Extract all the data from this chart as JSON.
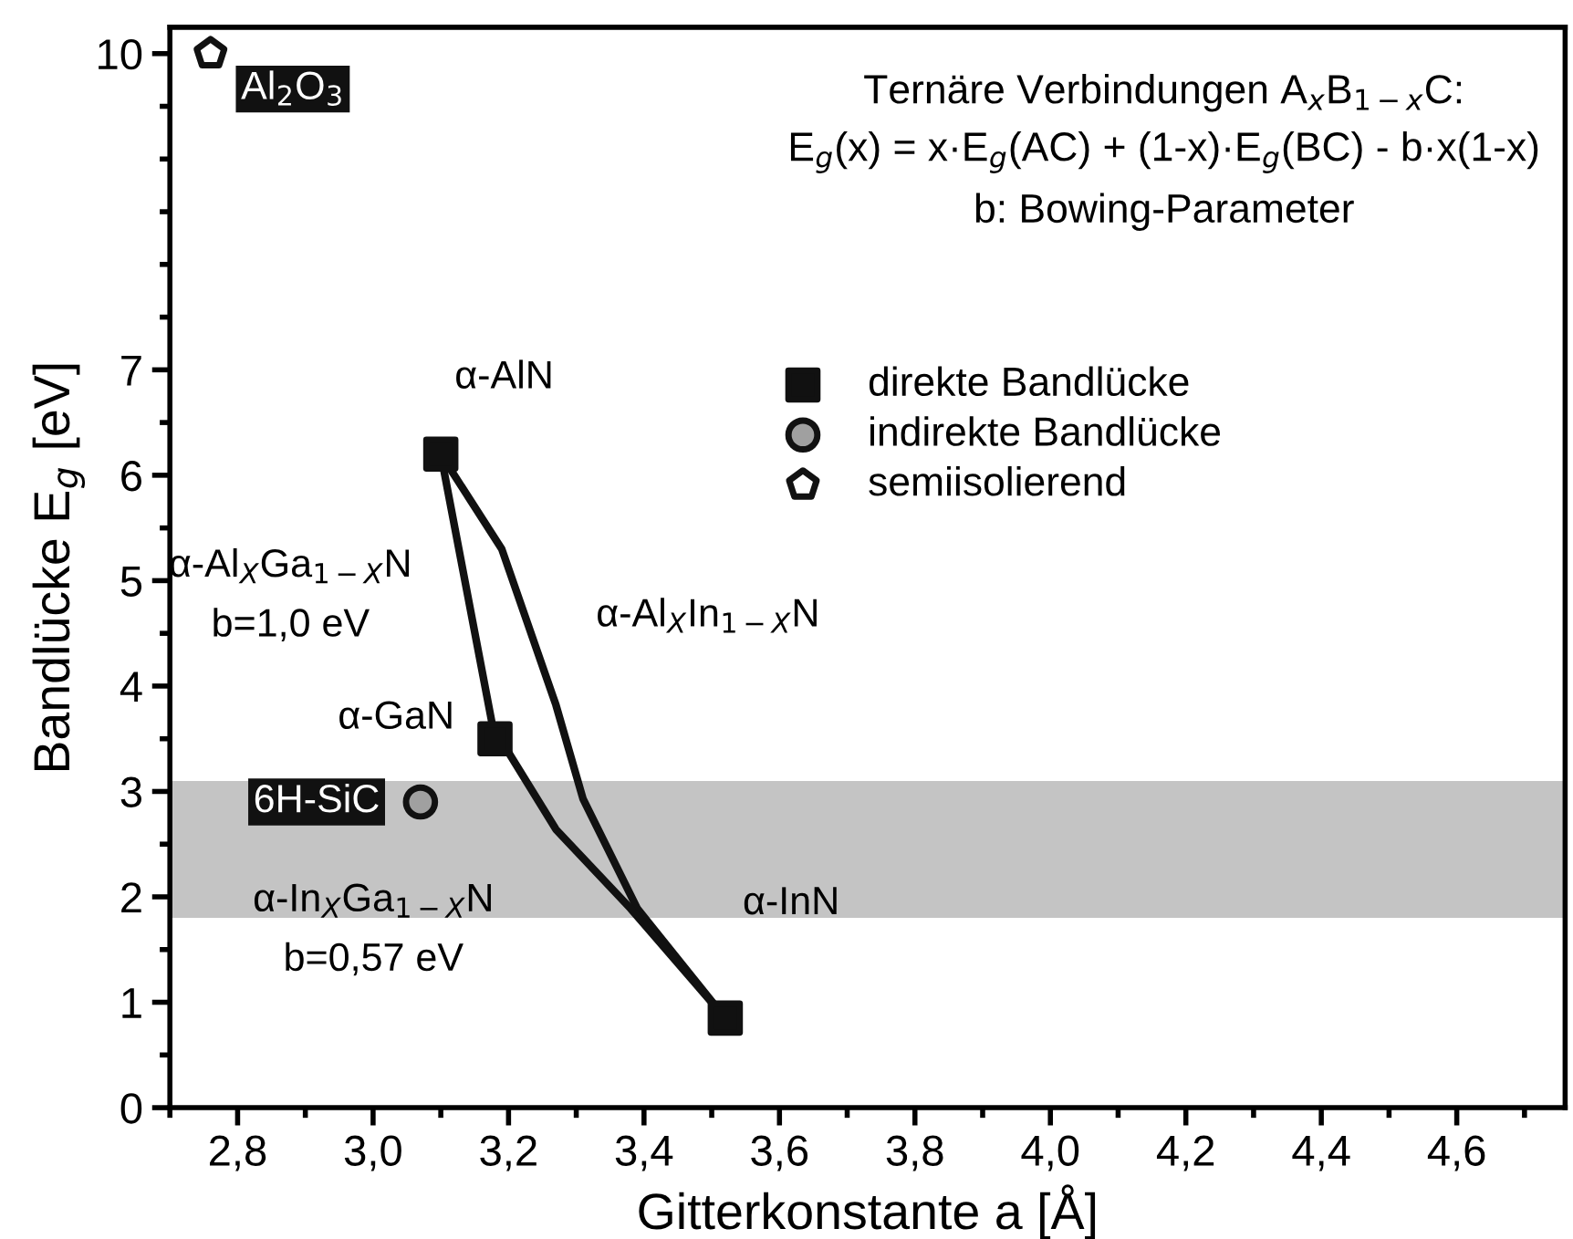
{
  "chart_data": {
    "type": "scatter",
    "xlim": [
      2.7,
      4.76
    ],
    "ylim": [
      0,
      10.25
    ],
    "xticks": [
      {
        "value": 2.8,
        "label": "2,8"
      },
      {
        "value": 3.0,
        "label": "3,0"
      },
      {
        "value": 3.2,
        "label": "3,2"
      },
      {
        "value": 3.4,
        "label": "3,4"
      },
      {
        "value": 3.6,
        "label": "3,6"
      },
      {
        "value": 3.8,
        "label": "3,8"
      },
      {
        "value": 4.0,
        "label": "4,0"
      },
      {
        "value": 4.2,
        "label": "4,2"
      },
      {
        "value": 4.4,
        "label": "4,4"
      },
      {
        "value": 4.6,
        "label": "4,6"
      }
    ],
    "yticks": [
      0,
      1,
      2,
      3,
      4,
      5,
      6,
      7,
      10
    ],
    "xlabel": "Gitterkonstante a [Å]",
    "ylabel": "Bandlücke E$_{g}$ [eV]",
    "legend": "top right",
    "bands": [
      {
        "axis": "y",
        "from": 1.8,
        "to": 3.1,
        "color": "#c4c4c4"
      }
    ],
    "series": [
      {
        "type": "line",
        "marker": "none",
        "color": "#111111",
        "x": [
          3.1,
          3.14,
          3.18
        ],
        "values": [
          6.2,
          4.85,
          3.5
        ]
      },
      {
        "type": "line",
        "marker": "none",
        "color": "#111111",
        "x": [
          3.1,
          3.19,
          3.27,
          3.31,
          3.39,
          3.52
        ],
        "values": [
          6.2,
          5.3,
          3.82,
          2.93,
          1.89,
          0.85
        ]
      },
      {
        "type": "line",
        "marker": "none",
        "color": "#111111",
        "x": [
          3.18,
          3.2,
          3.27,
          3.38,
          3.52
        ],
        "values": [
          3.5,
          3.37,
          2.64,
          1.89,
          0.85
        ]
      },
      {
        "name": "direkte Bandlücke",
        "marker": "square",
        "color": "#111111",
        "x": [
          3.1,
          3.18,
          3.52
        ],
        "values": [
          6.2,
          3.5,
          0.85
        ]
      },
      {
        "name": "indirekte Bandlücke",
        "marker": "circle",
        "color": "#a0a0a0",
        "x": [
          3.07
        ],
        "values": [
          2.9
        ]
      },
      {
        "name": "semiisolierend",
        "color": "#ffffff",
        "x": [
          2.76
        ],
        "values": [
          10
        ]
      }
    ],
    "annotations": [
      {
        "text": "α-AlN",
        "x": 3.1,
        "y": 6.2
      },
      {
        "text": "α-GaN",
        "x": 3.18,
        "y": 3.5
      },
      {
        "text": "α-InN",
        "x": 3.52,
        "y": 0.85
      },
      {
        "text": "6H-SiC",
        "x": 3.07,
        "y": 2.9
      },
      {
        "text": "α-Al$_{X}$Ga$_{1−X}$N\nb=1,0 eV",
        "x": 3.14,
        "y": 4.85
      },
      {
        "text": "α-Al$_{X}$In$_{1−X}$N",
        "x": 3.27,
        "y": 3.82
      },
      {
        "text": "α-In$_{X}$Ga$_{1−X}$N\nb=0,57 eV",
        "x": 3.27,
        "y": 2.64
      },
      {
        "text": "Al$_{2}$O$_{3}$",
        "x": 2.76,
        "y": 10
      },
      "Ternäre Verbindungen A$_{x}$B$_{1−x}$C:",
      "E$_{g}$(x) = x·E$_{g}$(AC) + (1-x)·E$_{g}$(BC) - b·x(1-x)",
      "b: Bowing-Parameter"
    ]
  }
}
